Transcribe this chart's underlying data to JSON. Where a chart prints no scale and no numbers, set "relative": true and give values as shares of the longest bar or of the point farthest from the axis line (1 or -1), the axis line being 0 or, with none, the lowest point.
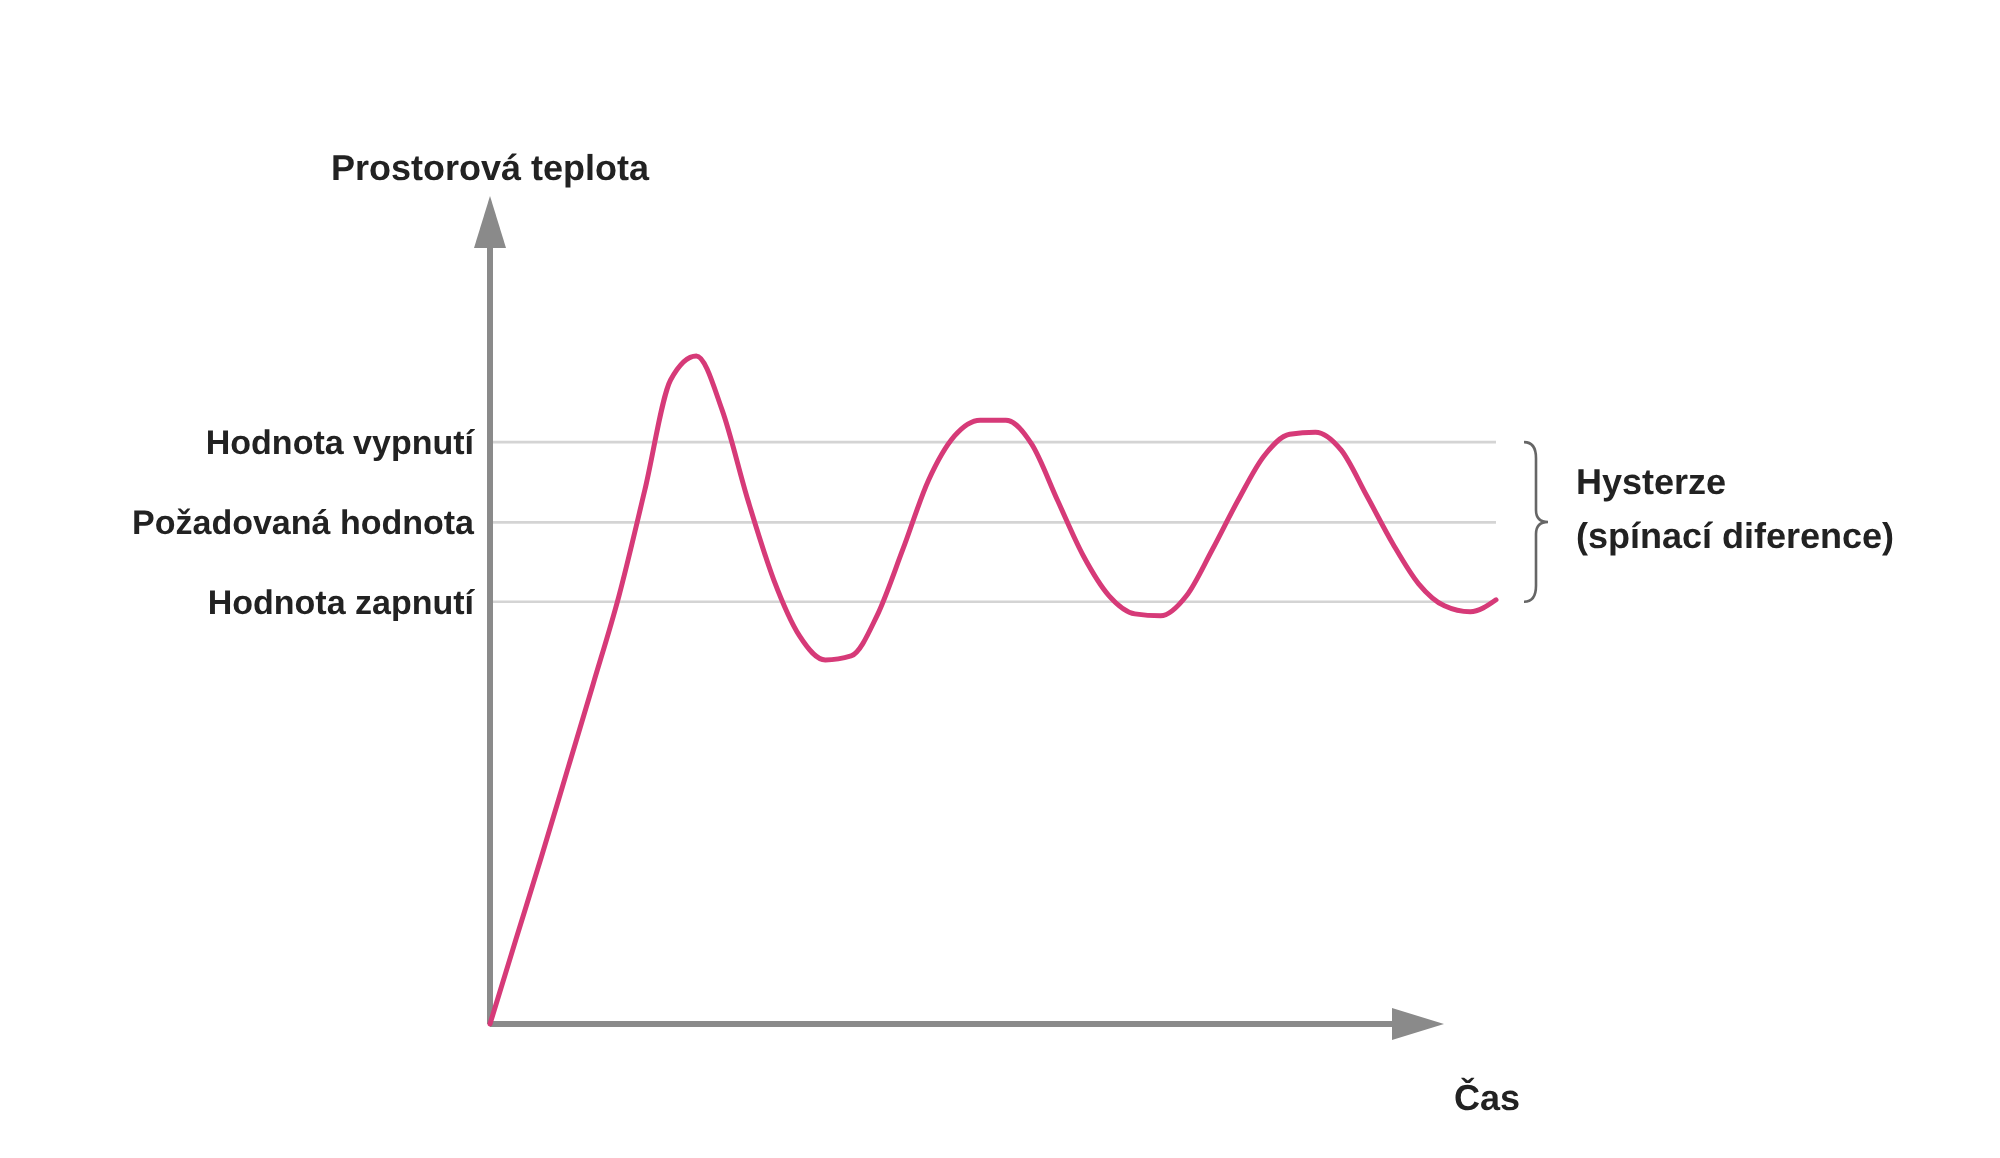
{
  "chart_data": {
    "type": "line",
    "relative": true,
    "ylabel": "Prostorová teplota",
    "xlabel": "Čas",
    "categories": [
      null,
      null,
      null,
      null,
      null,
      null,
      null,
      null,
      null,
      null,
      null,
      null,
      null,
      null,
      null,
      null,
      null,
      null,
      null,
      null,
      null,
      null,
      null,
      null,
      null,
      null,
      null,
      null,
      null,
      null,
      null,
      null,
      null,
      null,
      null,
      null,
      null,
      null,
      null,
      null
    ],
    "series": [
      {
        "color": "#d63a78",
        "values": [
          0,
          0.126,
          0.251,
          0.38,
          0.509,
          0.641,
          0.799,
          0.964,
          1,
          0.919,
          0.784,
          0.665,
          0.581,
          0.545,
          0.551,
          0.611,
          0.71,
          0.814,
          0.88,
          0.904,
          0.904,
          0.868,
          0.784,
          0.701,
          0.641,
          0.614,
          0.611,
          0.641,
          0.71,
          0.784,
          0.85,
          0.883,
          0.886,
          0.859,
          0.79,
          0.719,
          0.659,
          0.626,
          0.617,
          0.635
        ]
      }
    ],
    "ref_lines": [
      {
        "axis": "y",
        "value": 0.871,
        "label": "Hodnota vypnutí",
        "color": "#d4d4d4"
      },
      {
        "axis": "y",
        "value": 0.751,
        "label": "Požadovaná hodnota",
        "color": "#d4d4d4"
      },
      {
        "axis": "y",
        "value": 0.632,
        "label": "Hodnota zapnutí",
        "color": "#d4d4d4"
      }
    ],
    "annotations": [
      "Hysterze\n(spínací diference)"
    ]
  }
}
